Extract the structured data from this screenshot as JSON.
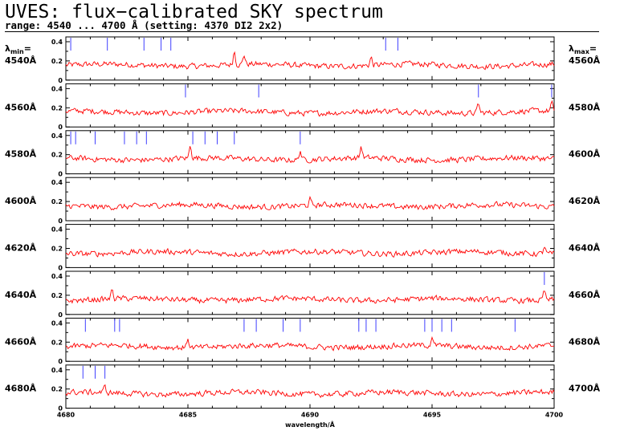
{
  "header": {
    "title": "UVES: flux−calibrated SKY spectrum",
    "subtitle": "range: 4540 ... 4700 Å (setting: 4370 DI2 2x2)"
  },
  "side_labels": {
    "left_head": "λmin=",
    "right_head": "λmax=",
    "lambda_symbol": "λ",
    "min_sub": "min",
    "max_sub": "max",
    "eq": "="
  },
  "chart_data": {
    "type": "line",
    "xlabel": "wavelength/Å",
    "x_ticks": [
      "4680",
      "4685",
      "4690",
      "4695",
      "4700"
    ],
    "y_ticks": [
      "0",
      "0.2",
      "0.4"
    ],
    "ylim": [
      0,
      0.45
    ],
    "line_color": "#ff0000",
    "marker_color": "#4040ff",
    "panels": [
      {
        "lambda_min": "4540Å",
        "lambda_max": "4560Å",
        "xlim": [
          4540,
          4560
        ],
        "lines": [
          4540.2,
          4541.7,
          4543.2,
          4543.9,
          4544.3,
          4553.1,
          4553.6
        ],
        "peaks": [
          [
            4546.9,
            0.3
          ],
          [
            4547.3,
            0.26
          ],
          [
            4552.5,
            0.24
          ]
        ]
      },
      {
        "lambda_min": "4560Å",
        "lambda_max": "4580Å",
        "xlim": [
          4560,
          4580
        ],
        "lines": [
          4564.9,
          4567.9,
          4576.9,
          4579.9
        ],
        "peaks": [
          [
            4576.9,
            0.26
          ],
          [
            4579.9,
            0.24
          ]
        ]
      },
      {
        "lambda_min": "4580Å",
        "lambda_max": "4600Å",
        "xlim": [
          4580,
          4600
        ],
        "lines": [
          4580.2,
          4580.4,
          4581.2,
          4582.4,
          4582.9,
          4583.3,
          4585.2,
          4585.7,
          4586.2,
          4586.9,
          4589.6
        ],
        "peaks": [
          [
            4585.1,
            0.3
          ],
          [
            4589.6,
            0.26
          ],
          [
            4592.1,
            0.28
          ]
        ]
      },
      {
        "lambda_min": "4600Å",
        "lambda_max": "4620Å",
        "xlim": [
          4600,
          4620
        ],
        "lines": [],
        "peaks": [
          [
            4610.0,
            0.22
          ]
        ]
      },
      {
        "lambda_min": "4620Å",
        "lambda_max": "4640Å",
        "xlim": [
          4620,
          4640
        ],
        "lines": [],
        "peaks": [
          [
            4639.6,
            0.24
          ]
        ]
      },
      {
        "lambda_min": "4640Å",
        "lambda_max": "4660Å",
        "xlim": [
          4640,
          4660
        ],
        "lines": [
          4659.6
        ],
        "peaks": [
          [
            4641.9,
            0.26
          ],
          [
            4659.6,
            0.26
          ]
        ]
      },
      {
        "lambda_min": "4660Å",
        "lambda_max": "4680Å",
        "xlim": [
          4660,
          4680
        ],
        "lines": [
          4660.8,
          4662.0,
          4662.2,
          4667.3,
          4667.8,
          4668.9,
          4669.6,
          4672.0,
          4672.3,
          4672.7,
          4674.7,
          4675.0,
          4675.4,
          4675.8,
          4678.4
        ],
        "peaks": [
          [
            4665.0,
            0.26
          ],
          [
            4675.0,
            0.26
          ]
        ]
      },
      {
        "lambda_min": "4680Å",
        "lambda_max": "4700Å",
        "xlim": [
          4680,
          4700
        ],
        "lines": [
          4680.7,
          4681.2,
          4681.6
        ],
        "peaks": [
          [
            4681.6,
            0.22
          ]
        ]
      }
    ]
  }
}
